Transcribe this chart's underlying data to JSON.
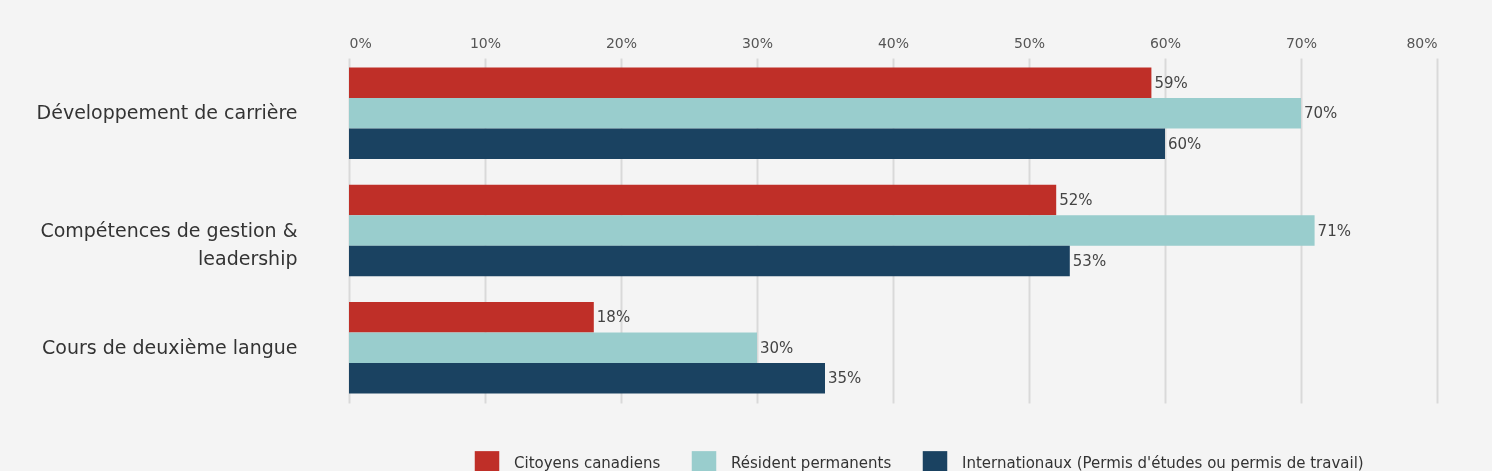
{
  "chart_data": {
    "type": "bar",
    "orientation": "horizontal",
    "categories": [
      "Développement de carrière",
      "Compétences de gestion & leadership",
      "Cours de deuxième langue"
    ],
    "series": [
      {
        "name": "Citoyens canadiens",
        "color": "#bf2f28",
        "values": [
          59,
          52,
          18
        ],
        "value_labels": [
          "59%",
          "52%",
          "18%"
        ]
      },
      {
        "name": "Résident permanents",
        "color": "#99cdcd",
        "values": [
          70,
          71,
          30
        ],
        "value_labels": [
          "70%",
          "71%",
          "30%"
        ]
      },
      {
        "name": "Internationaux (Permis d'études ou permis de travail)",
        "color": "#1a4261",
        "values": [
          60,
          53,
          35
        ],
        "value_labels": [
          "60%",
          "53%",
          "35%"
        ]
      }
    ],
    "xlim": [
      0,
      80
    ],
    "xticks": [
      {
        "value": 0,
        "label": "0%"
      },
      {
        "value": 10,
        "label": "10%"
      },
      {
        "value": 20,
        "label": "20%"
      },
      {
        "value": 30,
        "label": "30%"
      },
      {
        "value": 40,
        "label": "40%"
      },
      {
        "value": 50,
        "label": "50%"
      },
      {
        "value": 60,
        "label": "60%"
      },
      {
        "value": 70,
        "label": "70%"
      },
      {
        "value": 80,
        "label": "80%"
      }
    ],
    "grid": "x",
    "legend": "bottom"
  }
}
